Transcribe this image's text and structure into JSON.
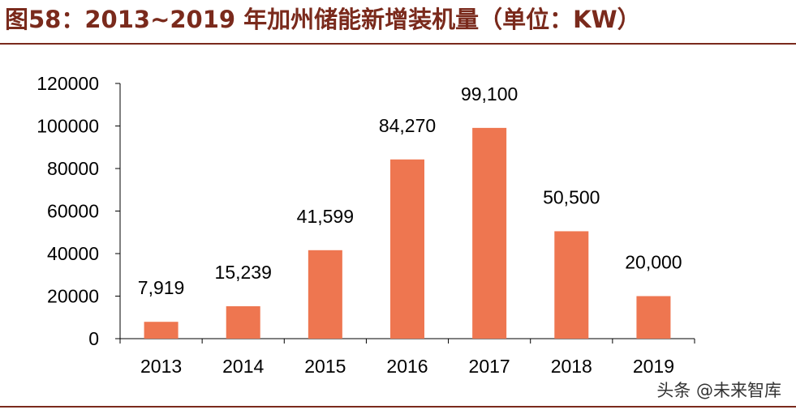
{
  "header": {
    "title": "图58：2013~2019 年加州储能新增装机量（单位：KW）"
  },
  "watermark": "头条 @未来智库",
  "colors": {
    "bar": "#ee7650",
    "title": "#7a2a1c",
    "axis": "#000000"
  },
  "chart_data": {
    "type": "bar",
    "title": "",
    "xlabel": "",
    "ylabel": "",
    "categories": [
      "2013",
      "2014",
      "2015",
      "2016",
      "2017",
      "2018",
      "2019"
    ],
    "values": [
      7919,
      15239,
      41599,
      84270,
      99100,
      50500,
      20000
    ],
    "data_labels": [
      "7,919",
      "15,239",
      "41,599",
      "84,270",
      "99,100",
      "50,500",
      "20,000"
    ],
    "y_ticks": [
      "0",
      "20000",
      "40000",
      "60000",
      "80000",
      "100000",
      "120000"
    ],
    "ylim": [
      0,
      120000
    ],
    "grid": false,
    "legend": "none"
  }
}
